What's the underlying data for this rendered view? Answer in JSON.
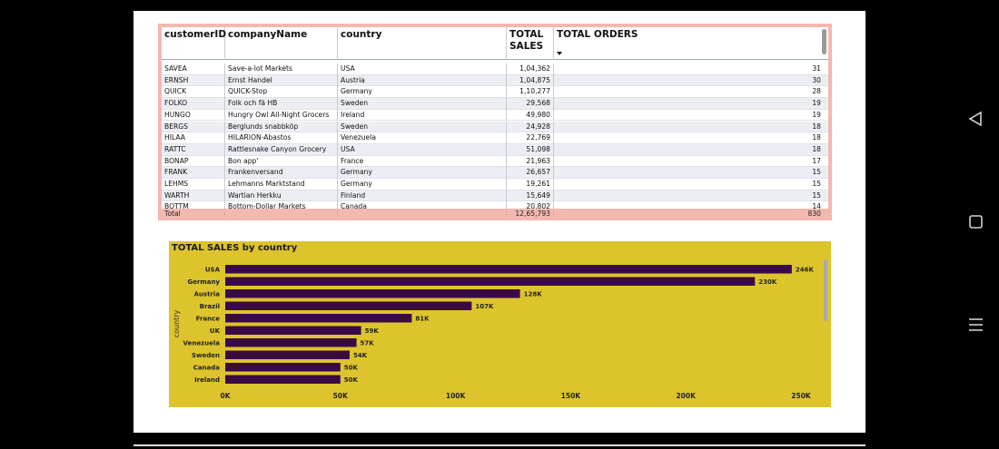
{
  "table": {
    "columns": [
      "customerID",
      "companyName",
      "country",
      "TOTAL SALES",
      "TOTAL ORDERS"
    ],
    "rows": [
      [
        "SAVEA",
        "Save-a-lot Markets",
        "USA",
        "1,04,362",
        "31"
      ],
      [
        "ERNSH",
        "Ernst Handel",
        "Austria",
        "1,04,875",
        "30"
      ],
      [
        "QUICK",
        "QUICK-Stop",
        "Germany",
        "1,10,277",
        "28"
      ],
      [
        "FOLKO",
        "Folk och fä HB",
        "Sweden",
        "29,568",
        "19"
      ],
      [
        "HUNGO",
        "Hungry Owl All-Night Grocers",
        "Ireland",
        "49,980",
        "19"
      ],
      [
        "BERGS",
        "Berglunds snabbköp",
        "Sweden",
        "24,928",
        "18"
      ],
      [
        "HILAA",
        "HILARION-Abastos",
        "Venezuela",
        "22,769",
        "18"
      ],
      [
        "RATTC",
        "Rattlesnake Canyon Grocery",
        "USA",
        "51,098",
        "18"
      ],
      [
        "BONAP",
        "Bon app'",
        "France",
        "21,963",
        "17"
      ],
      [
        "FRANK",
        "Frankenversand",
        "Germany",
        "26,657",
        "15"
      ],
      [
        "LEHMS",
        "Lehmanns Marktstand",
        "Germany",
        "19,261",
        "15"
      ],
      [
        "WARTH",
        "Wartian Herkku",
        "Finland",
        "15,649",
        "15"
      ],
      [
        "BOTTM",
        "Bottom-Dollar Markets",
        "Canada",
        "20,802",
        "14"
      ]
    ],
    "total": {
      "label": "Total",
      "sales": "12,65,793",
      "orders": "830"
    },
    "sort_column": "TOTAL ORDERS",
    "header_border_color": "#f4b8b0"
  },
  "chart_data": {
    "type": "bar",
    "orientation": "horizontal",
    "title": "TOTAL SALES by country",
    "ylabel": "country",
    "xlabel": "",
    "categories": [
      "USA",
      "Germany",
      "Austria",
      "Brazil",
      "France",
      "UK",
      "Venezuela",
      "Sweden",
      "Canada",
      "Ireland"
    ],
    "values": [
      246000,
      230000,
      128000,
      107000,
      81000,
      59000,
      57000,
      54000,
      50000,
      50000
    ],
    "data_labels": [
      "246K",
      "230K",
      "128K",
      "107K",
      "81K",
      "59K",
      "57K",
      "54K",
      "50K",
      "50K"
    ],
    "xticks": [
      "0K",
      "50K",
      "100K",
      "150K",
      "200K",
      "250K"
    ],
    "xlim": [
      0,
      250000
    ],
    "bar_color": "#3a0a45",
    "background_color": "#ddc42c"
  },
  "nav": {
    "back_icon": "triangle-left",
    "home_icon": "square",
    "menu_icon": "three-lines"
  }
}
